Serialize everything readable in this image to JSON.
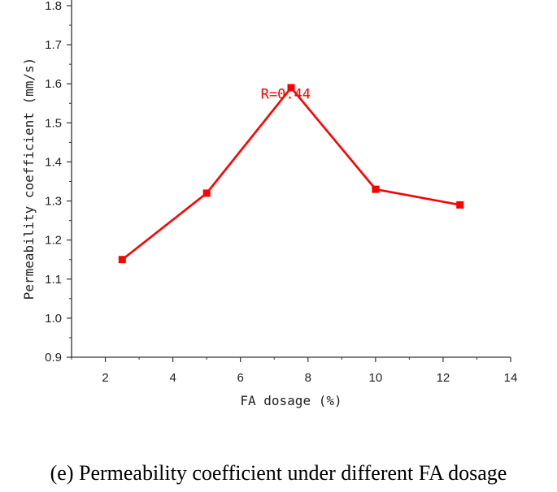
{
  "chart_data": {
    "type": "line",
    "x": [
      2.5,
      5,
      7.5,
      10,
      12.5
    ],
    "series": [
      {
        "values": [
          1.15,
          1.32,
          1.59,
          1.33,
          1.29
        ]
      }
    ],
    "xlabel": "FA dosage (%)",
    "ylabel": "Permeability coefficient (mm/s)",
    "xlim": [
      1,
      14
    ],
    "ylim": [
      0.9,
      1.8
    ],
    "xticks": [
      2,
      4,
      6,
      8,
      10,
      12,
      14
    ],
    "yticks": [
      0.9,
      1.0,
      1.1,
      1.2,
      1.3,
      1.4,
      1.5,
      1.6,
      1.7,
      1.8
    ],
    "xtick_labels": [
      "2",
      "4",
      "6",
      "8",
      "10",
      "12",
      "14"
    ],
    "ytick_labels": [
      "0.9",
      "1.0",
      "1.1",
      "1.2",
      "1.3",
      "1.4",
      "1.5",
      "1.6",
      "1.7",
      "1.8"
    ],
    "annotation": {
      "text": "R=0.44",
      "x": 6.6,
      "y": 1.575
    },
    "line_color": "#ff0000",
    "grid": false,
    "legend": "none"
  },
  "caption": "(e) Permeability coefficient under different FA dosage"
}
